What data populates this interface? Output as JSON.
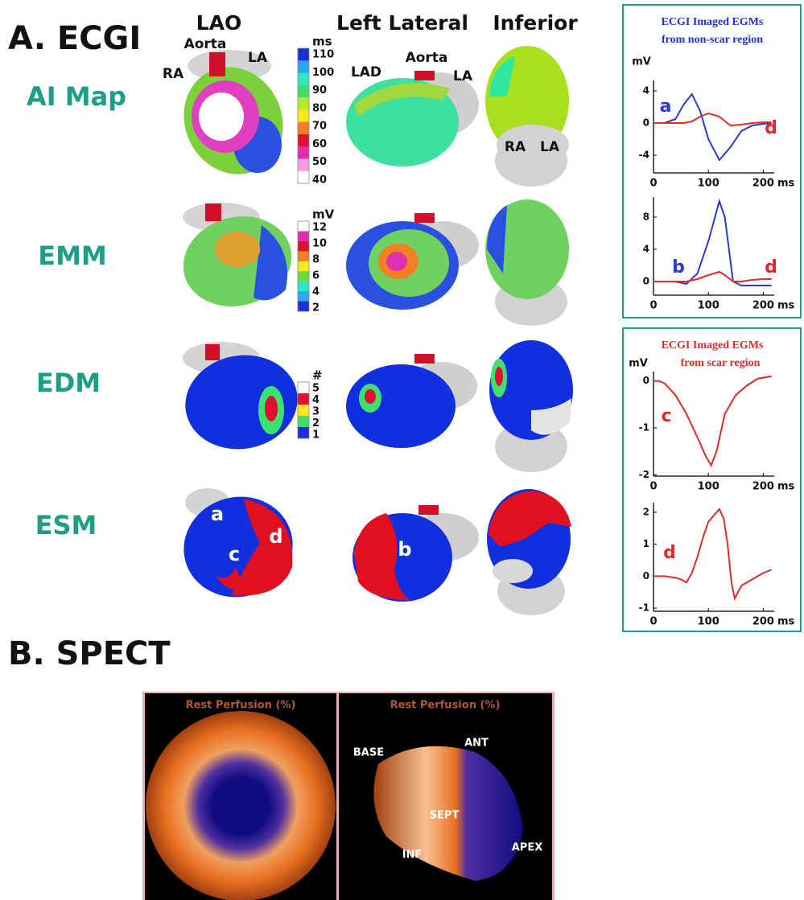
{
  "figure": {
    "panel_a": {
      "title": "A. ECGI",
      "views": [
        "LAO",
        "Left Lateral",
        "Inferior"
      ],
      "rows": [
        "AI Map",
        "EMM",
        "EDM",
        "ESM"
      ],
      "anatomy": [
        "RA",
        "Aorta",
        "LA",
        "LAD",
        "Aorta",
        "LA",
        "RA",
        "LA"
      ],
      "regions": [
        "a",
        "c",
        "d",
        "b"
      ]
    },
    "colorbars": [
      {
        "unit": "ms",
        "ticks": [
          110,
          100,
          90,
          80,
          70,
          60,
          50,
          40
        ],
        "colors": [
          "#1a2fd8",
          "#27a8f0",
          "#2ee8c8",
          "#3ee070",
          "#b8e830",
          "#f8e820",
          "#f08020",
          "#e01030",
          "#e030b0",
          "#f0a0e8",
          "#ffffff"
        ]
      },
      {
        "unit": "mV",
        "ticks": [
          12,
          10,
          8,
          6,
          4,
          2
        ],
        "colors": [
          "#ffffff",
          "#e030b0",
          "#e01030",
          "#f08020",
          "#f8e820",
          "#70d840",
          "#2ee8c8",
          "#27a8f0",
          "#1a2fd8"
        ]
      },
      {
        "unit": "#",
        "ticks": [
          5,
          4,
          3,
          2,
          1
        ],
        "colors": [
          "#ffffff",
          "#e01030",
          "#f8e820",
          "#3ee070",
          "#1a2fd8"
        ]
      }
    ],
    "boxes": [
      [
        "ECGI Imaged EGMs",
        "from non-scar region"
      ],
      [
        "ECGI Imaged EGMs",
        "from scar region"
      ]
    ],
    "panel_b": {
      "title": "B. SPECT",
      "image_titles": [
        "Rest Perfusion (%)",
        "Rest Perfusion (%)"
      ],
      "labels": [
        "BASE",
        "ANT",
        "SEPT",
        "INF",
        "APEX"
      ]
    }
  },
  "chart_data": [
    {
      "type": "line",
      "y_unit": "mV",
      "x_label": "ms",
      "xlim": [
        0,
        220
      ],
      "xticks": [
        0,
        100,
        200
      ],
      "ylim": [
        -6.2,
        5.3
      ],
      "yticks": [
        -4,
        0,
        4
      ],
      "x": [
        0,
        20,
        40,
        55,
        70,
        85,
        100,
        120,
        140,
        160,
        180,
        200,
        215
      ],
      "series": [
        {
          "name": "a",
          "color": "#2b3ad0",
          "values": [
            0,
            0,
            0.5,
            2.3,
            3.6,
            1.5,
            -2,
            -4.6,
            -3,
            -1,
            -0.3,
            -0.1,
            0
          ]
        },
        {
          "name": "d",
          "color": "#e02a2a",
          "values": [
            0,
            0,
            0,
            0,
            0.2,
            0.8,
            1.2,
            0.8,
            -0.3,
            -0.2,
            0,
            0.1,
            0.1
          ]
        }
      ]
    },
    {
      "type": "line",
      "x_label": "ms",
      "xlim": [
        0,
        220
      ],
      "xticks": [
        0,
        100,
        200
      ],
      "ylim": [
        -1.7,
        10.5
      ],
      "yticks": [
        0,
        4,
        8
      ],
      "x": [
        0,
        20,
        40,
        60,
        80,
        100,
        120,
        130,
        145,
        160,
        180,
        200,
        215
      ],
      "series": [
        {
          "name": "b",
          "color": "#2b3ad0",
          "values": [
            0,
            0,
            0,
            -0.3,
            1,
            5,
            10,
            8,
            0,
            -0.5,
            -0.5,
            -0.5,
            -0.5
          ]
        },
        {
          "name": "d",
          "color": "#e02a2a",
          "values": [
            0,
            0,
            0,
            0,
            0.3,
            0.8,
            1.2,
            0.8,
            0,
            0,
            0.2,
            0.3,
            0.3
          ]
        }
      ]
    },
    {
      "type": "line",
      "y_unit": "mV",
      "x_label": "ms",
      "xlim": [
        0,
        220
      ],
      "xticks": [
        0,
        100,
        200
      ],
      "ylim": [
        -2.03,
        0.2
      ],
      "yticks": [
        -2,
        -1,
        0
      ],
      "x": [
        0,
        10,
        20,
        40,
        60,
        80,
        95,
        105,
        115,
        130,
        150,
        170,
        190,
        215
      ],
      "series": [
        {
          "name": "c",
          "color": "#e02a2a",
          "values": [
            0,
            0,
            -0.05,
            -0.3,
            -0.7,
            -1.2,
            -1.6,
            -1.8,
            -1.5,
            -0.7,
            -0.3,
            -0.1,
            0.05,
            0.1
          ]
        }
      ]
    },
    {
      "type": "line",
      "x_label": "ms",
      "xlim": [
        0,
        220
      ],
      "xticks": [
        0,
        100,
        200
      ],
      "ylim": [
        -1.1,
        2.3
      ],
      "yticks": [
        -1,
        0,
        1,
        2
      ],
      "x": [
        0,
        20,
        40,
        50,
        60,
        70,
        80,
        90,
        100,
        110,
        120,
        128,
        135,
        142,
        148,
        160,
        180,
        200,
        215
      ],
      "series": [
        {
          "name": "d",
          "color": "#e02a2a",
          "values": [
            0,
            0,
            -0.05,
            -0.1,
            -0.2,
            0.1,
            0.6,
            1.2,
            1.7,
            1.9,
            2.1,
            1.8,
            1.0,
            -0.2,
            -0.7,
            -0.3,
            -0.1,
            0.1,
            0.2
          ]
        }
      ]
    }
  ]
}
